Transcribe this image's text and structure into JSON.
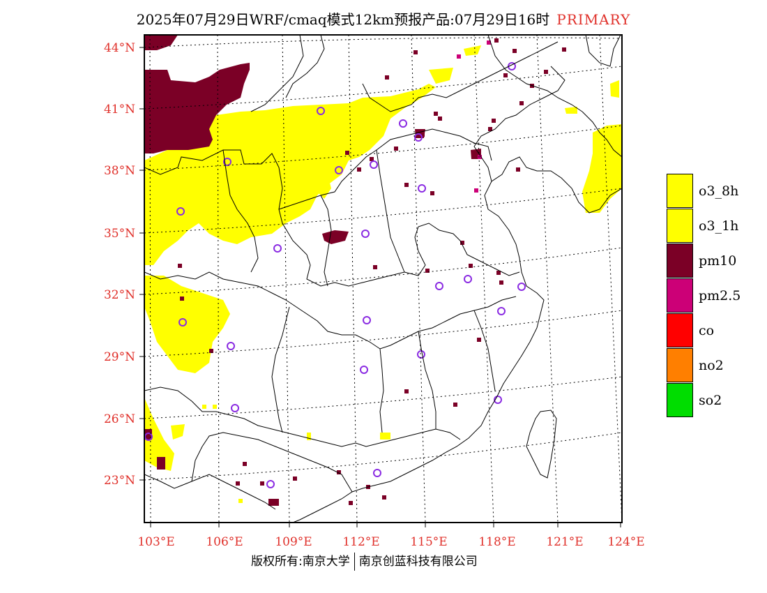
{
  "title": {
    "main": "2025年07月29日WRF/cmaq模式12km预报产品:07月29日16时",
    "tag": "PRIMARY"
  },
  "colors": {
    "label": "#e0302a",
    "o3_8h": "#ffff00",
    "o3_1h": "#ffff00",
    "pm10": "#7b0026",
    "pm2_5": "#cc0077",
    "co": "#ff0000",
    "no2": "#ff7f00",
    "so2": "#00dd00",
    "station_marker": "#8a2be2"
  },
  "axes": {
    "lat_labels": [
      "44°N",
      "41°N",
      "38°N",
      "35°N",
      "32°N",
      "29°N",
      "26°N",
      "23°N"
    ],
    "lon_labels": [
      "103°E",
      "106°E",
      "109°E",
      "112°E",
      "115°E",
      "118°E",
      "121°E",
      "124°E"
    ]
  },
  "legend": [
    {
      "label": "o3_8h",
      "color": "#ffff00"
    },
    {
      "label": "o3_1h",
      "color": "#ffff00"
    },
    {
      "label": "pm10",
      "color": "#7b0026"
    },
    {
      "label": "pm2.5",
      "color": "#cc0077"
    },
    {
      "label": "co",
      "color": "#ff0000"
    },
    {
      "label": "no2",
      "color": "#ff7f00"
    },
    {
      "label": "so2",
      "color": "#00dd00"
    }
  ],
  "footer": {
    "left": "版权所有:南京大学",
    "right": "南京创蓝科技有限公司"
  }
}
